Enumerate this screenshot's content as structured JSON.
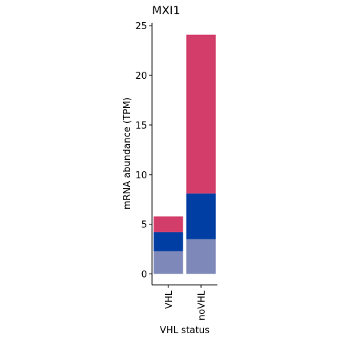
{
  "chart_data": {
    "type": "bar",
    "stacked": true,
    "title": "MXI1",
    "xlabel": "VHL status",
    "ylabel": "mRNA abundance (TPM)",
    "categories": [
      "VHL",
      "noVHL"
    ],
    "series": [
      {
        "color": "#7f89b9",
        "values": [
          2.3,
          3.5
        ]
      },
      {
        "color": "#003ea3",
        "values": [
          1.9,
          4.6
        ]
      },
      {
        "color": "#d33d6a",
        "values": [
          1.6,
          16.0
        ]
      }
    ],
    "ylim": [
      -1.1,
      25.3
    ],
    "yticks": [
      0,
      5,
      10,
      15,
      20,
      25
    ],
    "grid": false,
    "legend": "none"
  }
}
